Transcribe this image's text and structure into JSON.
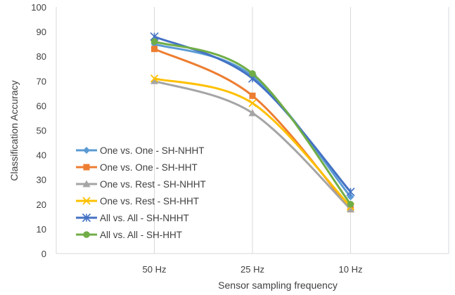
{
  "chart_data": {
    "type": "line",
    "title": "",
    "xlabel": "Sensor sampling frequency",
    "ylabel": "Classification Accuracy",
    "categories": [
      "50 Hz",
      "25 Hz",
      "10 Hz"
    ],
    "ylim": [
      0,
      100
    ],
    "yticks": [
      "0",
      "10",
      "20",
      "30",
      "40",
      "50",
      "60",
      "70",
      "80",
      "90",
      "100"
    ],
    "grid": "vertical",
    "legend_position": "inside-left",
    "smooth": true,
    "series": [
      {
        "name": "One vs. One - SH-NHHT",
        "values": [
          85,
          72,
          23
        ],
        "color": "#5B9BD5",
        "marker": "diamond"
      },
      {
        "name": "One vs. One - SH-HHT",
        "values": [
          83,
          64,
          18
        ],
        "color": "#ED7D31",
        "marker": "square"
      },
      {
        "name": "One vs. Rest - SH-NHHT",
        "values": [
          70,
          57,
          18
        ],
        "color": "#A5A5A5",
        "marker": "triangle"
      },
      {
        "name": "One vs. Rest - SH-HHT",
        "values": [
          71,
          61,
          19
        ],
        "color": "#FFC000",
        "marker": "x"
      },
      {
        "name": "All vs. All - SH-NHHT",
        "values": [
          88,
          71,
          25
        ],
        "color": "#4472C4",
        "marker": "star"
      },
      {
        "name": "All vs. All - SH-HHT",
        "values": [
          86,
          73,
          20
        ],
        "color": "#70AD47",
        "marker": "circle"
      }
    ]
  }
}
